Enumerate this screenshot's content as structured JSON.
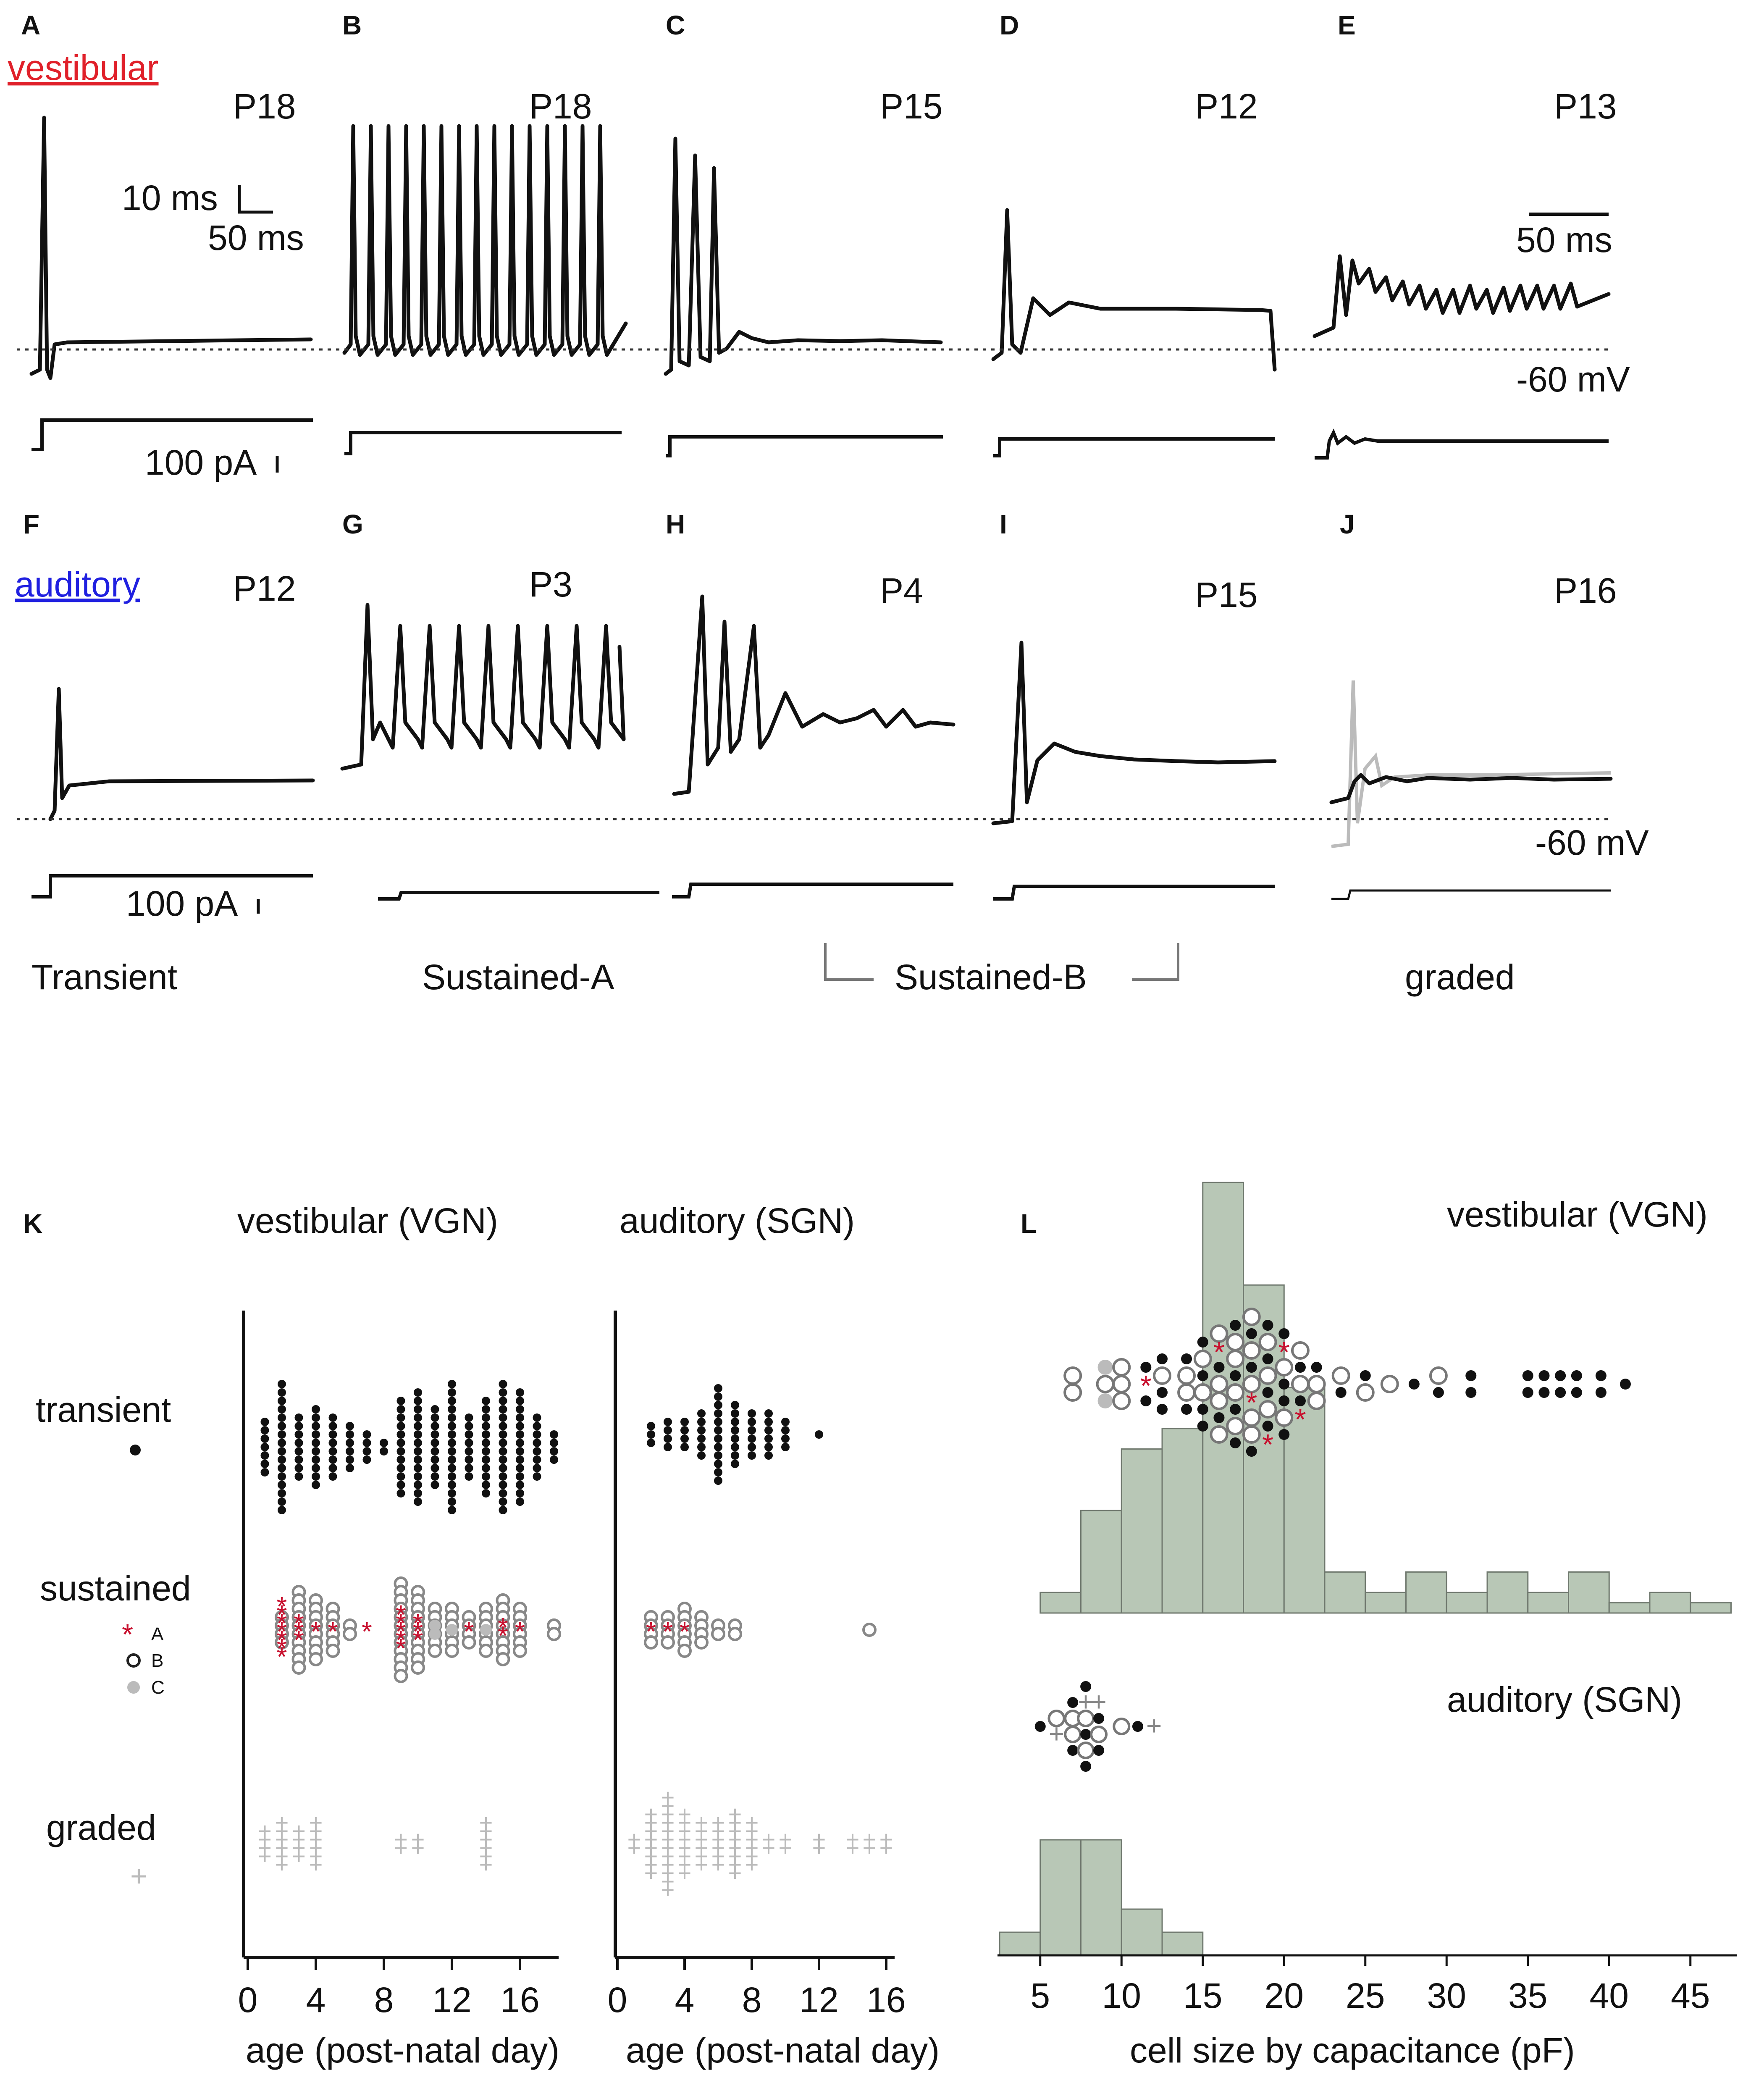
{
  "colors": {
    "vestibular": "#e0202a",
    "auditory": "#2020e0",
    "star": "#c8102e",
    "histfill": "#b8c7b6",
    "gray": "#bbbbbb"
  },
  "panels": {
    "A": {
      "letter": "A",
      "age": "P18",
      "group_label": "vestibular"
    },
    "B": {
      "letter": "B",
      "age": "P18"
    },
    "C": {
      "letter": "C",
      "age": "P15"
    },
    "D": {
      "letter": "D",
      "age": "P12"
    },
    "E": {
      "letter": "E",
      "age": "P13"
    },
    "F": {
      "letter": "F",
      "age": "P12",
      "group_label": "auditory"
    },
    "G": {
      "letter": "G",
      "age": "P3"
    },
    "H": {
      "letter": "H",
      "age": "P4"
    },
    "I": {
      "letter": "I",
      "age": "P15"
    },
    "J": {
      "letter": "J",
      "age": "P16"
    },
    "K": {
      "letter": "K"
    },
    "L": {
      "letter": "L"
    }
  },
  "scalebars": {
    "a_voltage": "10 ms",
    "a_time": "50 ms",
    "e_time": "50 ms",
    "current_a": "100 pA",
    "current_f": "100 pA",
    "vrest_top": "-60 mV",
    "vrest_bottom": "-60 mV"
  },
  "categories": {
    "transient": "Transient",
    "sustained_a": "Sustained-A",
    "sustained_b": "Sustained-B",
    "graded": "graded"
  },
  "chart_data": [
    {
      "panel": "K",
      "type": "scatter",
      "title_left": "vestibular (VGN)",
      "title_right": "auditory (SGN)",
      "xlabel_left": "age (post-natal day)",
      "xlabel_right": "age (post-natal day)",
      "xticks_left": [
        "0",
        "4",
        "8",
        "12",
        "16"
      ],
      "xticks_right": [
        "0",
        "4",
        "8",
        "12",
        "16"
      ],
      "xlim": [
        0,
        18
      ],
      "rows": [
        {
          "name": "transient",
          "marker": "•"
        },
        {
          "name": "sustained",
          "legend": [
            {
              "symbol": "*",
              "label": "A"
            },
            {
              "symbol": "○",
              "label": "B"
            },
            {
              "symbol": "●",
              "label": "C"
            }
          ]
        },
        {
          "name": "graded",
          "marker": "+"
        }
      ],
      "vgn": {
        "transient": [
          [
            1,
            7
          ],
          [
            2,
            16
          ],
          [
            3,
            8
          ],
          [
            4,
            10
          ],
          [
            5,
            8
          ],
          [
            6,
            6
          ],
          [
            7,
            4
          ],
          [
            8,
            2
          ],
          [
            9,
            12
          ],
          [
            10,
            14
          ],
          [
            11,
            10
          ],
          [
            12,
            16
          ],
          [
            13,
            8
          ],
          [
            14,
            12
          ],
          [
            15,
            16
          ],
          [
            16,
            14
          ],
          [
            17,
            8
          ],
          [
            18,
            4
          ]
        ],
        "sustained_A": [
          [
            2,
            7
          ],
          [
            3,
            3
          ],
          [
            4,
            1
          ],
          [
            5,
            1
          ],
          [
            7,
            1
          ],
          [
            9,
            5
          ],
          [
            10,
            3
          ],
          [
            13,
            1
          ],
          [
            15,
            2
          ],
          [
            16,
            1
          ]
        ],
        "sustained_B": [
          [
            2,
            4
          ],
          [
            3,
            10
          ],
          [
            4,
            8
          ],
          [
            5,
            6
          ],
          [
            6,
            2
          ],
          [
            9,
            12
          ],
          [
            10,
            10
          ],
          [
            11,
            6
          ],
          [
            12,
            6
          ],
          [
            13,
            4
          ],
          [
            14,
            6
          ],
          [
            15,
            8
          ],
          [
            16,
            6
          ],
          [
            18,
            2
          ]
        ],
        "sustained_C": [
          [
            11,
            2
          ],
          [
            12,
            1
          ],
          [
            14,
            1
          ]
        ],
        "graded": [
          [
            1,
            4
          ],
          [
            2,
            6
          ],
          [
            3,
            4
          ],
          [
            4,
            6
          ],
          [
            9,
            2
          ],
          [
            10,
            2
          ],
          [
            14,
            6
          ]
        ]
      },
      "sgn": {
        "transient": [
          [
            2,
            3
          ],
          [
            3,
            4
          ],
          [
            4,
            4
          ],
          [
            5,
            6
          ],
          [
            6,
            12
          ],
          [
            7,
            8
          ],
          [
            8,
            6
          ],
          [
            9,
            6
          ],
          [
            10,
            4
          ],
          [
            12,
            1
          ]
        ],
        "sustained_A": [
          [
            2,
            1
          ],
          [
            3,
            1
          ],
          [
            4,
            1
          ]
        ],
        "sustained_B": [
          [
            2,
            4
          ],
          [
            3,
            4
          ],
          [
            4,
            6
          ],
          [
            5,
            4
          ],
          [
            6,
            2
          ],
          [
            7,
            2
          ],
          [
            15,
            1
          ]
        ],
        "graded": [
          [
            1,
            2
          ],
          [
            2,
            8
          ],
          [
            3,
            12
          ],
          [
            4,
            8
          ],
          [
            5,
            6
          ],
          [
            6,
            6
          ],
          [
            7,
            8
          ],
          [
            8,
            6
          ],
          [
            9,
            2
          ],
          [
            10,
            2
          ],
          [
            12,
            2
          ],
          [
            14,
            2
          ],
          [
            15,
            2
          ],
          [
            16,
            2
          ]
        ]
      }
    },
    {
      "panel": "L",
      "type": "bar",
      "xlabel": "cell size by capacitance (pF)",
      "xticks": [
        "5",
        "10",
        "15",
        "20",
        "25",
        "30",
        "35",
        "40",
        "45"
      ],
      "xlim": [
        2.5,
        47.5
      ],
      "bin_width": 2.5,
      "vgn": {
        "title": "vestibular (VGN)",
        "bins": [
          5,
          7.5,
          10,
          12.5,
          15,
          17.5,
          20,
          22.5,
          25,
          27.5,
          30,
          32.5,
          35,
          37.5,
          40,
          42.5,
          45
        ],
        "counts": [
          1,
          5,
          8,
          9,
          21,
          16,
          11,
          2,
          1,
          2,
          1,
          2,
          1,
          2,
          0.5,
          1,
          0.5
        ]
      },
      "sgn": {
        "title": "auditory (SGN)",
        "bins": [
          2.5,
          5,
          7.5,
          10,
          12.5
        ],
        "counts": [
          1,
          5,
          5,
          2,
          1
        ]
      }
    }
  ]
}
